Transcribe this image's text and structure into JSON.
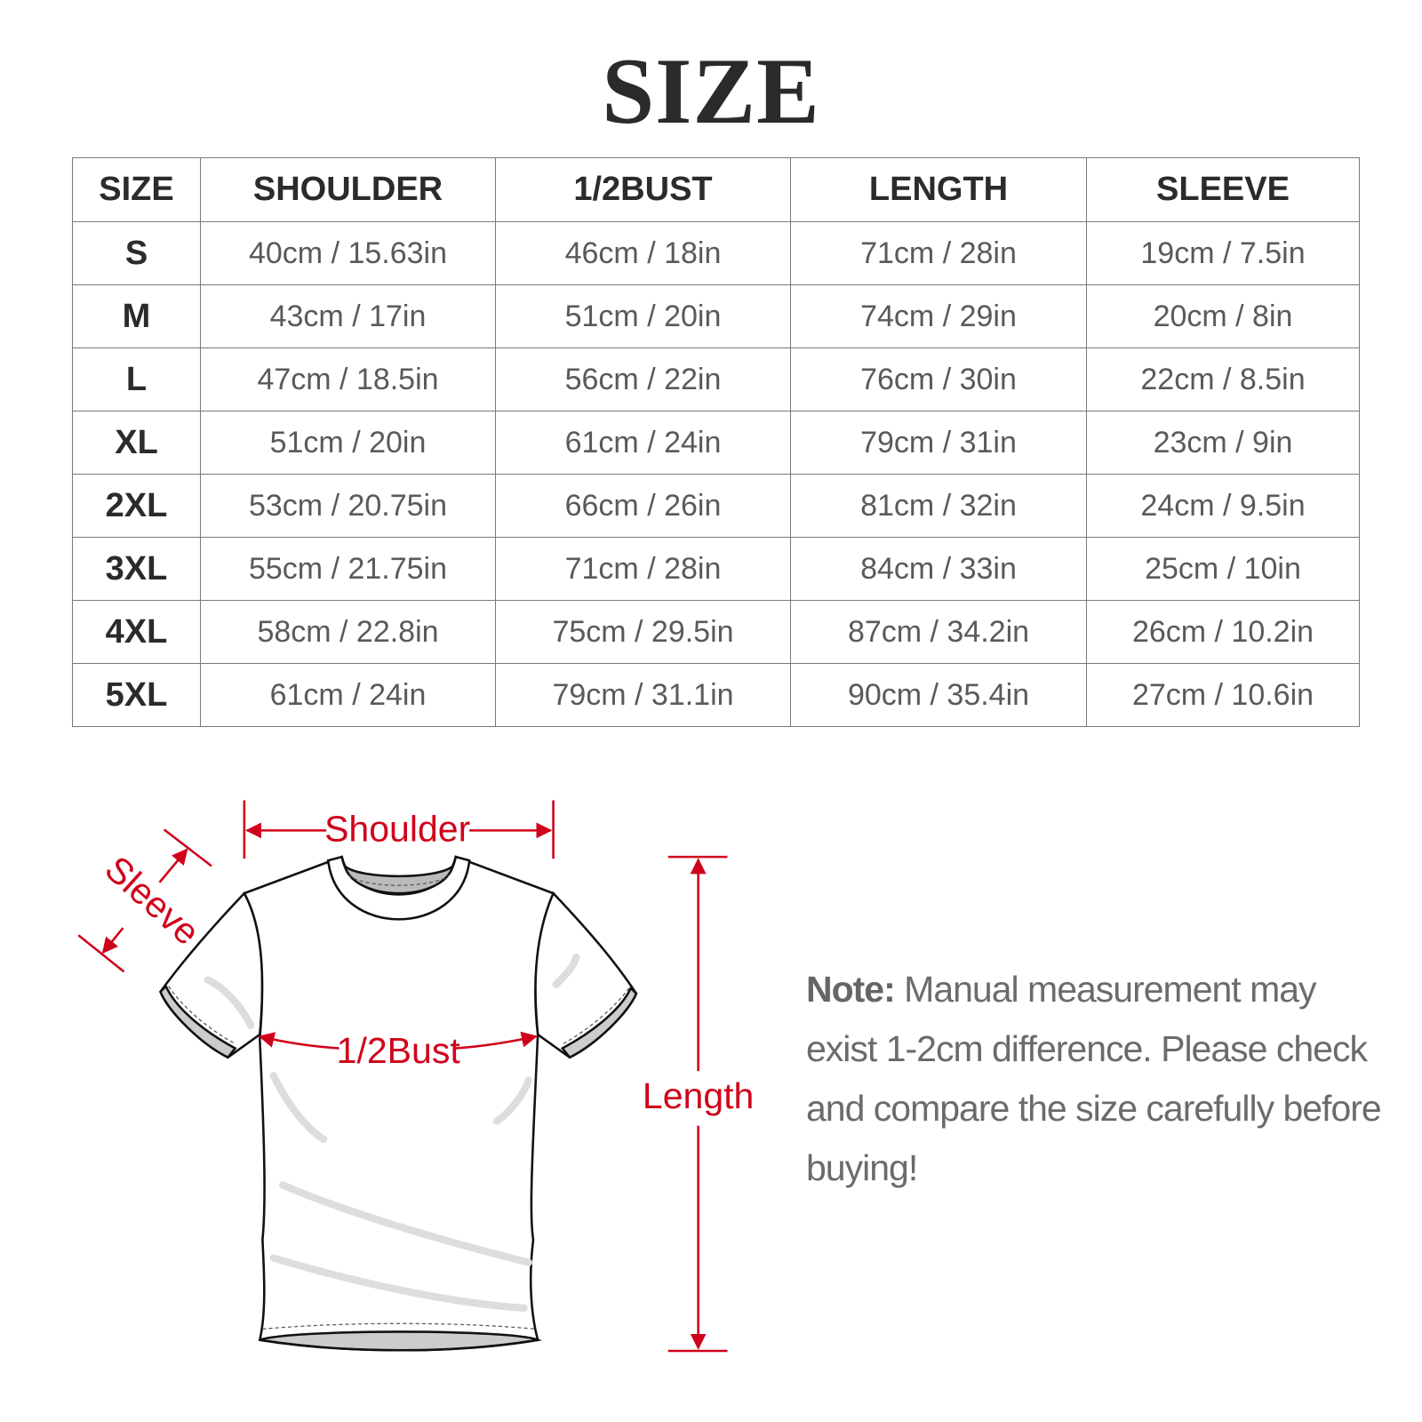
{
  "title": "SIZE",
  "table": {
    "headers": [
      "SIZE",
      "SHOULDER",
      "1/2BUST",
      "LENGTH",
      "SLEEVE"
    ],
    "rows": [
      [
        "S",
        "40cm / 15.63in",
        "46cm / 18in",
        "71cm / 28in",
        "19cm / 7.5in"
      ],
      [
        "M",
        "43cm / 17in",
        "51cm / 20in",
        "74cm / 29in",
        "20cm / 8in"
      ],
      [
        "L",
        "47cm / 18.5in",
        "56cm / 22in",
        "76cm / 30in",
        "22cm / 8.5in"
      ],
      [
        "XL",
        "51cm / 20in",
        "61cm / 24in",
        "79cm / 31in",
        "23cm / 9in"
      ],
      [
        "2XL",
        "53cm / 20.75in",
        "66cm / 26in",
        "81cm / 32in",
        "24cm / 9.5in"
      ],
      [
        "3XL",
        "55cm / 21.75in",
        "71cm / 28in",
        "84cm / 33in",
        "25cm / 10in"
      ],
      [
        "4XL",
        "58cm / 22.8in",
        "75cm / 29.5in",
        "87cm / 34.2in",
        "26cm / 10.2in"
      ],
      [
        "5XL",
        "61cm / 24in",
        "79cm / 31.1in",
        "90cm / 35.4in",
        "27cm / 10.6in"
      ]
    ]
  },
  "diagram": {
    "shoulder_label": "Shoulder",
    "sleeve_label": "Sleeve",
    "bust_label": "1/2Bust",
    "length_label": "Length",
    "accent_color": "#d0021b"
  },
  "note": {
    "label": "Note:",
    "text": "Manual measurement may exist 1-2cm difference. Please check and compare the size carefully before buying!"
  }
}
